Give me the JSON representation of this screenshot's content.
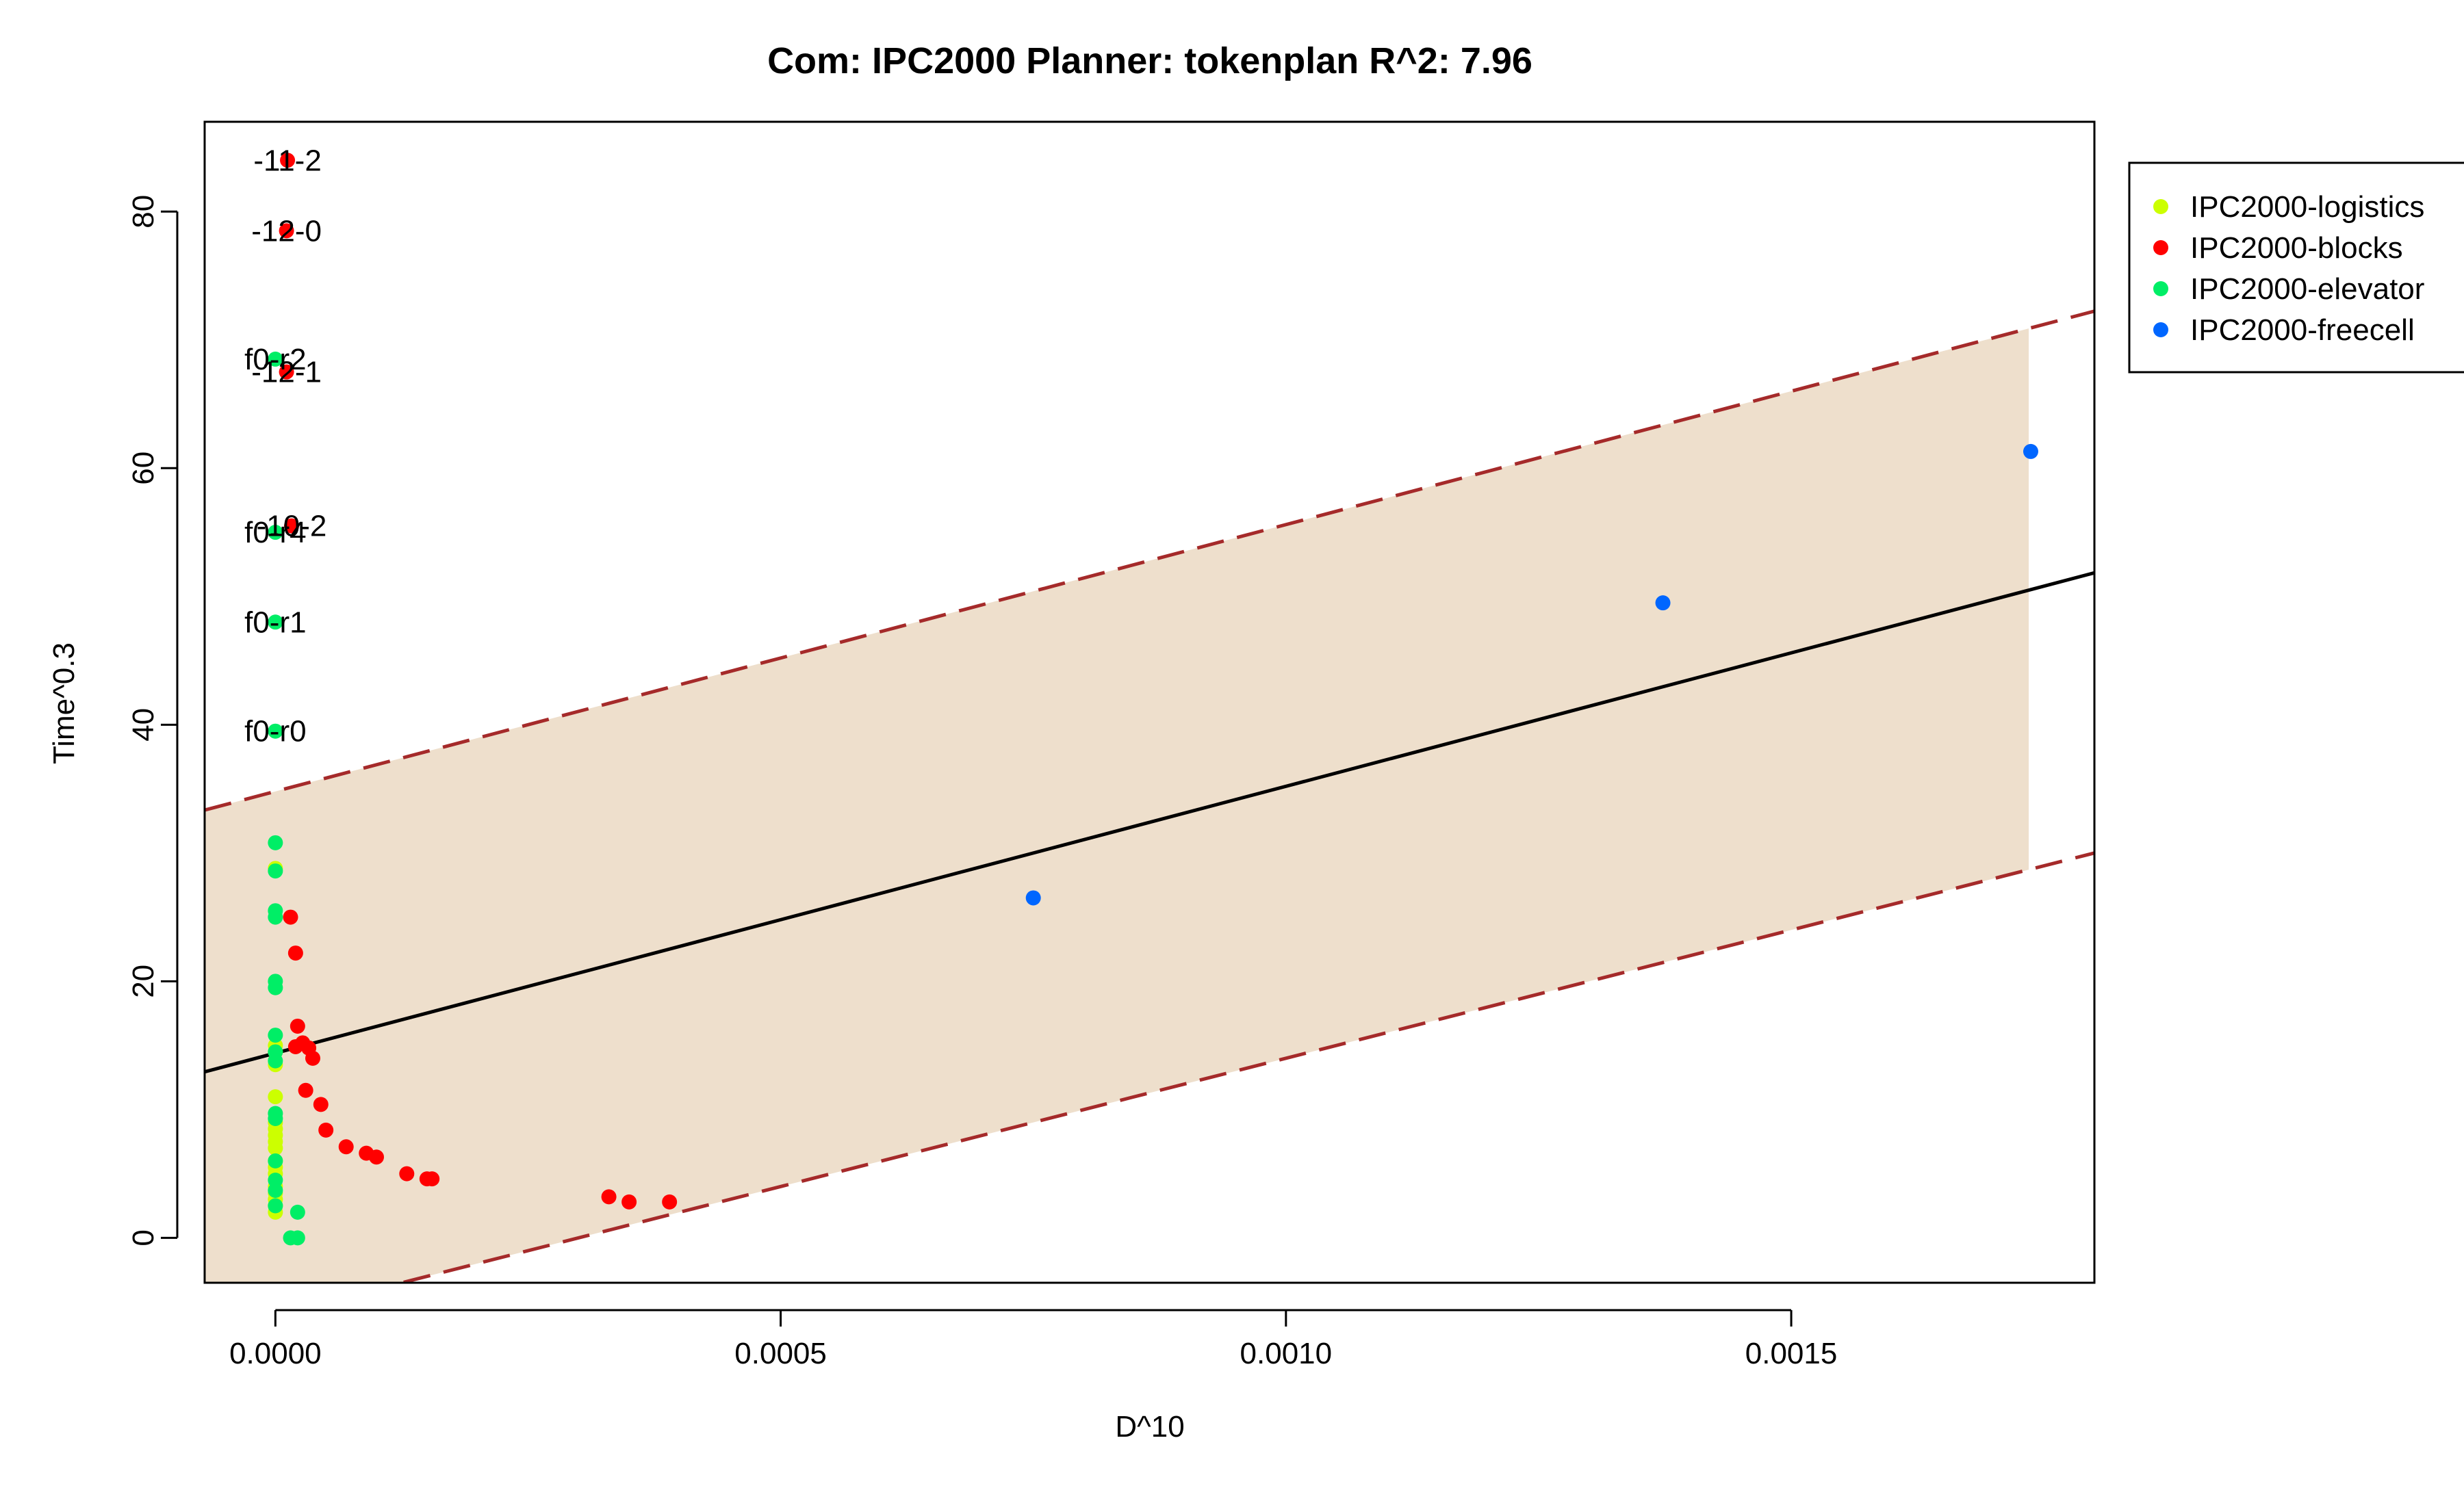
{
  "chart_data": {
    "type": "scatter",
    "title": "Com: IPC2000 Planner: tokenplan R^2: 7.96",
    "xlabel": "D^10",
    "ylabel": "Time^0.3",
    "xlim": [
      -7e-05,
      0.0018
    ],
    "ylim": [
      -3.5,
      87
    ],
    "x_ticks": [
      0,
      0.0005,
      0.001,
      0.0015
    ],
    "x_tick_labels": [
      "0.0000",
      "0.0005",
      "0.0010",
      "0.0015"
    ],
    "y_ticks": [
      0,
      20,
      40,
      60,
      80
    ],
    "y_tick_labels": [
      "0",
      "20",
      "40",
      "60",
      "80"
    ],
    "grid": false,
    "legend_position": "top-right, outside plot area",
    "fit_line": {
      "intercept": 14.4,
      "slope": 20800,
      "color": "#000000"
    },
    "prediction_band": {
      "x_range": [
        -7e-05,
        0.001735
      ],
      "upper_intercept": 34.8,
      "upper_slope": 20800,
      "lower_intercept": -6.0,
      "lower_slope": 20000,
      "line_color": "#a52a2a",
      "fill_color": "#eedfcc"
    },
    "series": [
      {
        "name": "IPC2000-logistics",
        "color": "#ccff00",
        "points": [
          [
            0,
            2
          ],
          [
            0,
            2.5
          ],
          [
            0,
            3
          ],
          [
            0,
            3.5
          ],
          [
            0,
            4
          ],
          [
            0,
            5
          ],
          [
            0,
            5.5
          ],
          [
            0,
            6
          ],
          [
            0,
            7
          ],
          [
            0,
            7.5
          ],
          [
            0,
            8
          ],
          [
            0,
            8.5
          ],
          [
            0,
            9
          ],
          [
            0,
            11
          ],
          [
            0,
            13.5
          ],
          [
            0,
            14.5
          ],
          [
            0,
            15
          ],
          [
            0,
            28.8
          ]
        ]
      },
      {
        "name": "IPC2000-blocks",
        "color": "#ff0000",
        "points": [
          [
            1.2e-05,
            84
          ],
          [
            1.1e-05,
            78.5
          ],
          [
            1.1e-05,
            67.5
          ],
          [
            1.6e-05,
            55.5
          ],
          [
            1.5e-05,
            25
          ],
          [
            2e-05,
            22.2
          ],
          [
            2.2e-05,
            16.5
          ],
          [
            2e-05,
            14.9
          ],
          [
            2.7e-05,
            15.2
          ],
          [
            3.3e-05,
            14.8
          ],
          [
            3.7e-05,
            14
          ],
          [
            3e-05,
            11.5
          ],
          [
            4.5e-05,
            10.4
          ],
          [
            5e-05,
            8.4
          ],
          [
            7e-05,
            7.1
          ],
          [
            9e-05,
            6.6
          ],
          [
            0.0001,
            6.3
          ],
          [
            0.00013,
            5
          ],
          [
            0.00015,
            4.6
          ],
          [
            0.000155,
            4.6
          ],
          [
            0.00033,
            3.2
          ],
          [
            0.00035,
            2.8
          ],
          [
            0.00039,
            2.8
          ]
        ],
        "labels": [
          {
            "x": 1.2e-05,
            "y": 84,
            "text": "-11-2"
          },
          {
            "x": 1.1e-05,
            "y": 78.5,
            "text": "-12-0"
          },
          {
            "x": 1.1e-05,
            "y": 67.5,
            "text": "-12-1"
          },
          {
            "x": 1.6e-05,
            "y": 55.5,
            "text": "-10-2"
          }
        ]
      },
      {
        "name": "IPC2000-elevator",
        "color": "#00ee66",
        "points": [
          [
            0,
            68.5
          ],
          [
            0,
            55
          ],
          [
            0,
            48
          ],
          [
            0,
            39.5
          ],
          [
            0,
            30.8
          ],
          [
            0,
            28.6
          ],
          [
            0,
            25.5
          ],
          [
            0,
            25
          ],
          [
            0,
            20
          ],
          [
            0,
            19.5
          ],
          [
            0,
            15.8
          ],
          [
            0,
            14.5
          ],
          [
            0,
            13.8
          ],
          [
            0,
            9.7
          ],
          [
            0,
            9.3
          ],
          [
            0,
            6
          ],
          [
            0,
            4.5
          ],
          [
            0,
            3.7
          ],
          [
            0,
            2.5
          ],
          [
            2.2e-05,
            2
          ],
          [
            1.5e-05,
            0
          ],
          [
            2.2e-05,
            0
          ]
        ],
        "labels": [
          {
            "x": 0,
            "y": 68.5,
            "text": "f0-r2"
          },
          {
            "x": 0,
            "y": 55,
            "text": "f0-r4"
          },
          {
            "x": 0,
            "y": 48,
            "text": "f0-r1"
          },
          {
            "x": 0,
            "y": 39.5,
            "text": "f0-r0"
          }
        ]
      },
      {
        "name": "IPC2000-freecell",
        "color": "#0066ff",
        "points": [
          [
            0.00075,
            26.5
          ],
          [
            0.001373,
            49.5
          ],
          [
            0.001737,
            61.3
          ]
        ]
      }
    ]
  }
}
